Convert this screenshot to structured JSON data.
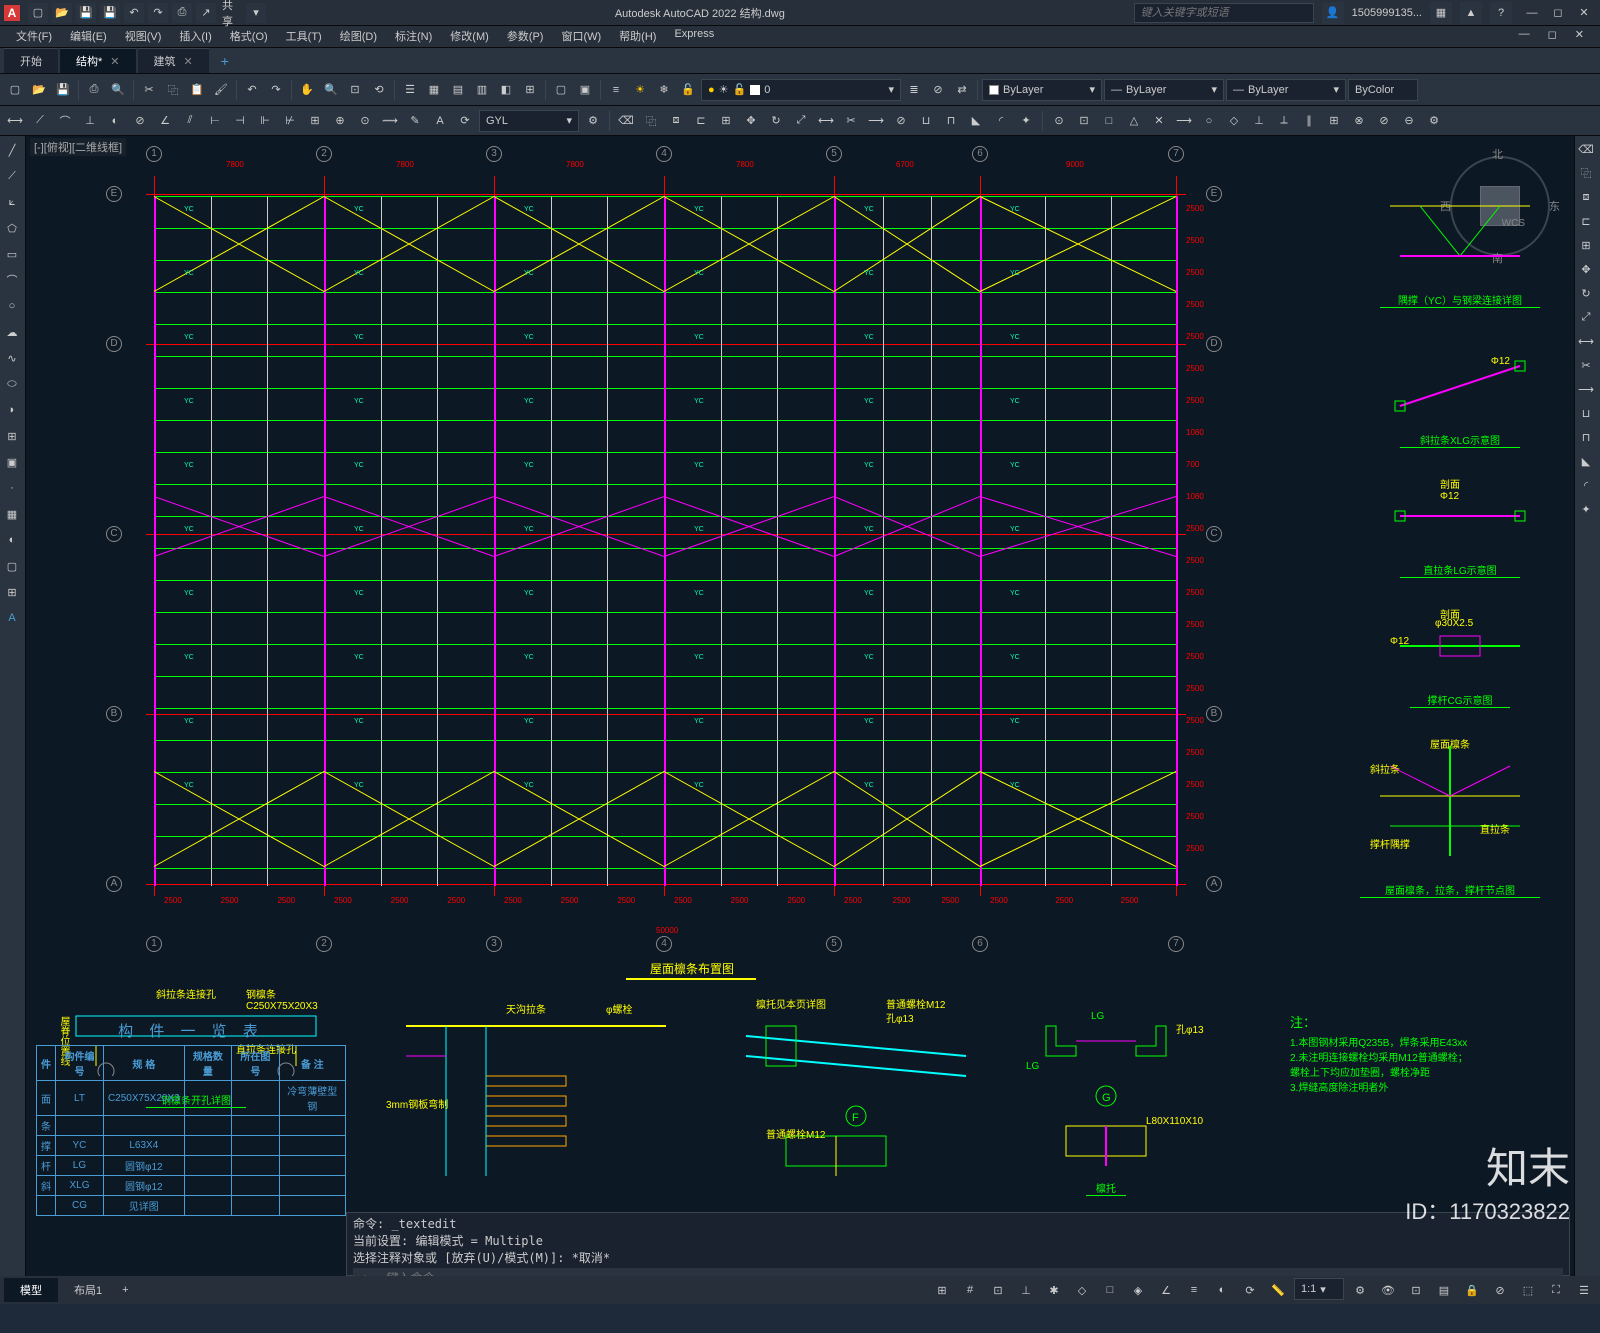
{
  "title": "Autodesk AutoCAD 2022  结构.dwg",
  "app_letter": "A",
  "share_label": "共享",
  "search_placeholder": "键入关键字或短语",
  "user_label": "1505999135... ",
  "menu": [
    "文件(F)",
    "编辑(E)",
    "视图(V)",
    "插入(I)",
    "格式(O)",
    "工具(T)",
    "绘图(D)",
    "标注(N)",
    "修改(M)",
    "参数(P)",
    "窗口(W)",
    "帮助(H)",
    "Express"
  ],
  "tabs": [
    {
      "label": "开始",
      "active": false
    },
    {
      "label": "结构*",
      "active": true
    },
    {
      "label": "建筑",
      "active": false
    }
  ],
  "layer_value": "0",
  "linetype1": "ByLayer",
  "linetype2": "ByLayer",
  "linetype3": "ByLayer",
  "color_value": "ByColor",
  "gyl_value": "GYL",
  "viewport_label": "[-][俯视][二维线框]",
  "compass": {
    "n": "北",
    "s": "南",
    "e": "东",
    "w": "西",
    "wcs": "WCS"
  },
  "grid_cols": [
    "1",
    "2",
    "3",
    "4",
    "5",
    "6",
    "7"
  ],
  "grid_rows": [
    "E",
    "D",
    "C",
    "B",
    "A"
  ],
  "col_spacing": [
    7800,
    7800,
    7800,
    7800,
    6700,
    9000
  ],
  "row_spacings": [
    2500,
    2500,
    2500,
    2500,
    2500,
    2500,
    2500,
    1080,
    700,
    1080,
    2500,
    2500,
    2500,
    2500,
    2500,
    2500,
    2500,
    2500,
    2500,
    2500,
    2500
  ],
  "total_width": 50000,
  "main_title": "屋面檩条布置图",
  "detail_titles": {
    "d1": "隅撑（YC）与钢梁连接详图",
    "d2": "斜拉条XLG示意图",
    "d3": "直拉条LG示意图",
    "d4": "撑杆CG示意图",
    "d5": "屋面檩条，拉条，撑杆节点图",
    "d6": "钢檩条开孔详图",
    "d7": "檩托"
  },
  "detail_labels": {
    "purlin": "钢檩条C250X75X20X3",
    "xlg_hole": "斜拉条连接孔",
    "lg_hole": "直拉条连接孔",
    "ridge": "屋脊位置线",
    "tie": "天沟拉条",
    "bolt": "φ螺栓",
    "plate": "3mm钢板弯制",
    "bracket": "檩托见本页详图",
    "normal_bolt": "普通螺栓M12",
    "hole13": "孔φ13",
    "angle": "L80X110X10",
    "phi12": "Φ12",
    "phi30": "φ30X2.5",
    "section": "剖面",
    "roof_purlin": "屋面檩条",
    "xlg": "斜拉条",
    "lg2": "直拉条",
    "cg": "撑杆隅撑",
    "lg_label": "LG",
    "yc_label": "YC",
    "xlg_label": "XLG"
  },
  "table": {
    "title": "构 件 一 览 表",
    "headers": [
      "件",
      "构件编号",
      "规    格",
      "规格数量",
      "所在图号",
      "备 注"
    ],
    "rows": [
      [
        "面",
        "LT",
        "C250X75X20X3",
        "",
        "",
        "冷弯薄壁型钢"
      ],
      [
        "条",
        "",
        "",
        "",
        "",
        ""
      ],
      [
        "撑",
        "YC",
        "L63X4",
        "",
        "",
        ""
      ],
      [
        "杆",
        "LG",
        "圆钢φ12",
        "",
        "",
        ""
      ],
      [
        "斜",
        "XLG",
        "圆钢φ12",
        "",
        "",
        ""
      ],
      [
        "",
        "CG",
        "见详图",
        "",
        "",
        ""
      ]
    ]
  },
  "notes": {
    "title": "注：",
    "items": [
      "1.本图钢材采用Q235B，焊条采用E43xx",
      "2.未注明连接螺栓均采用M12普通螺栓；",
      "  螺栓上下均应加垫圈，螺栓净距",
      "3.焊缝高度除注明者外"
    ]
  },
  "cmd": {
    "l1": "命令: _textedit",
    "l2": "当前设置: 编辑模式 = Multiple",
    "l3": "选择注释对象或 [放弃(U)/模式(M)]: *取消*",
    "prompt": "键入命令"
  },
  "status": {
    "model": "模型",
    "layout": "布局1",
    "scale": "1:1"
  },
  "watermark": "知末",
  "watermark_id": "ID：1170323822",
  "colors": {
    "grid": "#ff0000",
    "purlin": "#00ff00",
    "col": "#ff00ff",
    "white": "#cccccc",
    "tie": "#ffff00",
    "cyan": "#00ffff",
    "bg": "#0d1825"
  }
}
